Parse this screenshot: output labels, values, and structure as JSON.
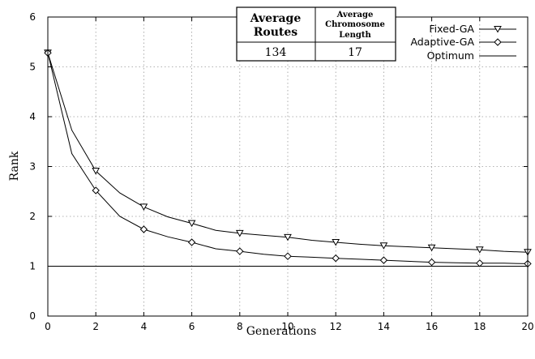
{
  "chart_data": {
    "type": "line",
    "xlabel": "Generations",
    "ylabel": "Rank",
    "xlim": [
      0,
      20
    ],
    "ylim": [
      0,
      6
    ],
    "x_ticks": [
      "0",
      "2",
      "4",
      "6",
      "8",
      "10",
      "12",
      "14",
      "16",
      "18",
      "20"
    ],
    "y_ticks": [
      "0",
      "1",
      "2",
      "3",
      "4",
      "5",
      "6"
    ],
    "grid": true,
    "legend_position": "top-right",
    "x": [
      0,
      1,
      2,
      3,
      4,
      5,
      6,
      7,
      8,
      9,
      10,
      11,
      12,
      13,
      14,
      15,
      16,
      17,
      18,
      19,
      20
    ],
    "series": [
      {
        "name": "Fixed-GA",
        "marker": "triangle-down",
        "values": [
          5.28,
          3.73,
          2.91,
          2.47,
          2.19,
          1.99,
          1.86,
          1.72,
          1.66,
          1.62,
          1.58,
          1.52,
          1.48,
          1.44,
          1.41,
          1.39,
          1.37,
          1.35,
          1.33,
          1.3,
          1.28
        ]
      },
      {
        "name": "Adaptive-GA",
        "marker": "diamond",
        "values": [
          5.28,
          3.26,
          2.52,
          2.0,
          1.74,
          1.59,
          1.48,
          1.35,
          1.3,
          1.24,
          1.2,
          1.18,
          1.16,
          1.14,
          1.12,
          1.1,
          1.08,
          1.07,
          1.06,
          1.06,
          1.05
        ]
      },
      {
        "name": "Optimum",
        "marker": "none",
        "values": [
          1,
          1,
          1,
          1,
          1,
          1,
          1,
          1,
          1,
          1,
          1,
          1,
          1,
          1,
          1,
          1,
          1,
          1,
          1,
          1,
          1
        ]
      }
    ],
    "inset_table": {
      "headers": [
        [
          "Average",
          "Routes"
        ],
        [
          "Average",
          "Chromosome",
          "Length"
        ]
      ],
      "values": [
        "134",
        "17"
      ]
    }
  }
}
